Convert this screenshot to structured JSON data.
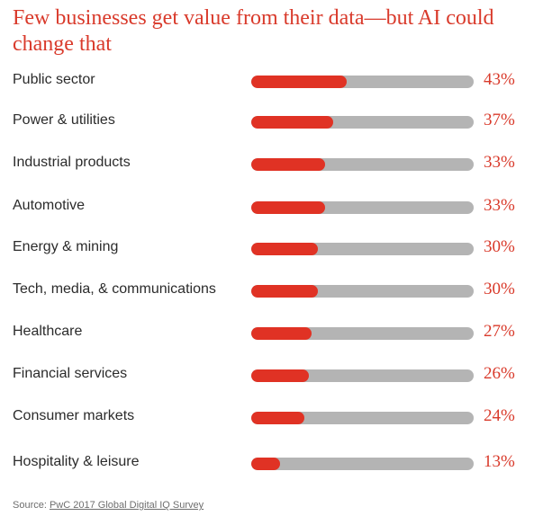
{
  "chart_data": {
    "type": "bar",
    "title": "Few businesses get value from their data—but AI could change that",
    "categories": [
      "Public sector",
      "Power & utilities",
      "Industrial products",
      "Automotive",
      "Energy & mining",
      "Tech, media, & communications",
      "Healthcare",
      "Financial services",
      "Consumer markets",
      "Hospitality & leisure"
    ],
    "values": [
      43,
      37,
      33,
      33,
      30,
      30,
      27,
      26,
      24,
      13
    ],
    "value_labels": [
      "43%",
      "37%",
      "33%",
      "33%",
      "30%",
      "30%",
      "27%",
      "26%",
      "24%",
      "13%"
    ],
    "xlim": [
      0,
      100
    ],
    "orientation": "horizontal",
    "grid": false,
    "colors": {
      "fill": "#e03224",
      "track": "#b4b4b4",
      "text_accent": "#d93a2b"
    }
  },
  "source": {
    "prefix": "Source: ",
    "link_text": "PwC 2017 Global Digital IQ Survey"
  }
}
